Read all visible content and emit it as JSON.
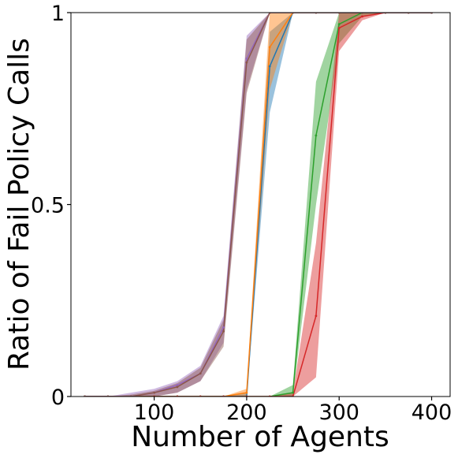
{
  "chart_data": {
    "type": "line",
    "title": "",
    "xlabel": "Number of Agents",
    "ylabel": "Ratio of Fail Policy Calls",
    "xlim": [
      10,
      420
    ],
    "ylim": [
      0,
      1
    ],
    "xticks": [
      100,
      200,
      300,
      400
    ],
    "yticks": [
      0,
      0.5,
      1
    ],
    "ytick_labels": [
      "0",
      "0.5",
      "1"
    ],
    "grid": false,
    "legend": "none",
    "x": [
      25,
      50,
      75,
      100,
      125,
      150,
      175,
      200,
      225,
      250,
      275,
      300,
      325,
      350,
      375,
      400
    ],
    "series": [
      {
        "color": "#1f77b4",
        "values": [
          0,
          0,
          0,
          0,
          0,
          0,
          0,
          0,
          0.86,
          1,
          1,
          1,
          1,
          1,
          1,
          1
        ],
        "lower": [
          0,
          0,
          0,
          0,
          0,
          0,
          0,
          0,
          0.74,
          1,
          1,
          1,
          1,
          1,
          1,
          1
        ],
        "upper": [
          0,
          0,
          0,
          0,
          0,
          0,
          0,
          0.01,
          0.95,
          1,
          1,
          1,
          1,
          1,
          1,
          1
        ]
      },
      {
        "color": "#ff7f0e",
        "values": [
          0,
          0,
          0,
          0,
          0,
          0,
          0,
          0.01,
          0.91,
          1,
          1,
          1,
          1,
          1,
          1,
          1
        ],
        "lower": [
          0,
          0,
          0,
          0,
          0,
          0,
          0,
          0,
          0.8,
          1,
          1,
          1,
          1,
          1,
          1,
          1
        ],
        "upper": [
          0,
          0,
          0,
          0,
          0,
          0,
          0,
          0.02,
          1,
          1,
          1,
          1,
          1,
          1,
          1,
          1
        ]
      },
      {
        "color": "#2ca02c",
        "values": [
          0,
          0,
          0,
          0,
          0,
          0,
          0,
          0,
          0,
          0.01,
          0.68,
          0.97,
          1,
          1,
          1,
          1
        ],
        "lower": [
          0,
          0,
          0,
          0,
          0,
          0,
          0,
          0,
          0,
          0,
          0.5,
          0.92,
          0.99,
          1,
          1,
          1
        ],
        "upper": [
          0,
          0,
          0,
          0,
          0,
          0,
          0,
          0,
          0,
          0.03,
          0.82,
          1,
          1,
          1,
          1,
          1
        ]
      },
      {
        "color": "#d62728",
        "values": [
          0,
          0,
          0,
          0,
          0,
          0,
          0,
          0,
          0,
          0,
          0.21,
          0.96,
          0.99,
          1,
          1,
          1
        ],
        "lower": [
          0,
          0,
          0,
          0,
          0,
          0,
          0,
          0,
          0,
          0,
          0.05,
          0.9,
          0.98,
          1,
          1,
          1
        ],
        "upper": [
          0,
          0,
          0,
          0,
          0,
          0,
          0,
          0,
          0,
          0.01,
          0.4,
          1,
          1,
          1,
          1,
          1
        ]
      },
      {
        "color": "#9467bd",
        "values": [
          0,
          0,
          0,
          0.01,
          0.03,
          0.06,
          0.18,
          0.88,
          1,
          1,
          1,
          1,
          1,
          1,
          1,
          1
        ],
        "lower": [
          0,
          0,
          0,
          0,
          0.01,
          0.04,
          0.14,
          0.8,
          1,
          1,
          1,
          1,
          1,
          1,
          1,
          1
        ],
        "upper": [
          0,
          0,
          0.01,
          0.02,
          0.04,
          0.08,
          0.21,
          0.94,
          1,
          1,
          1,
          1,
          1,
          1,
          1,
          1
        ]
      },
      {
        "color": "#8c564b",
        "values": [
          0,
          0,
          0,
          0.01,
          0.025,
          0.06,
          0.17,
          0.87,
          1,
          1,
          1,
          1,
          1,
          1,
          1,
          1
        ],
        "lower": [
          0,
          0,
          0,
          0,
          0.01,
          0.04,
          0.13,
          0.79,
          1,
          1,
          1,
          1,
          1,
          1,
          1,
          1
        ],
        "upper": [
          0,
          0,
          0.005,
          0.015,
          0.035,
          0.075,
          0.2,
          0.93,
          1,
          1,
          1,
          1,
          1,
          1,
          1,
          1
        ]
      }
    ]
  }
}
